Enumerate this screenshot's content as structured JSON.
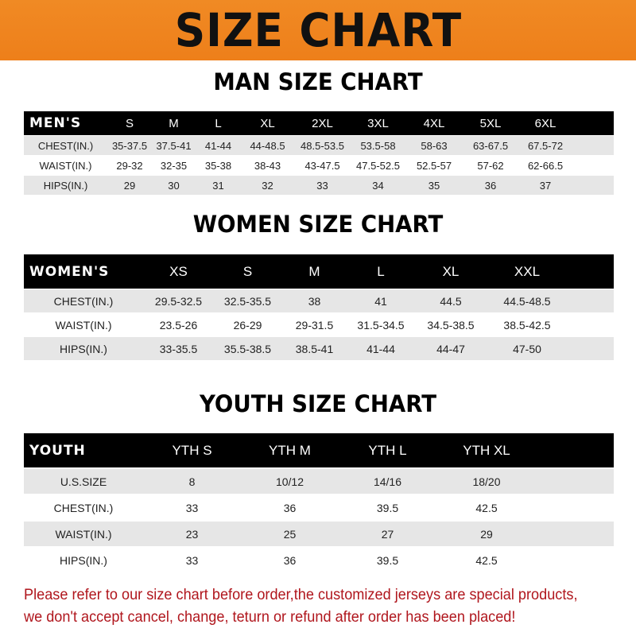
{
  "title": "SIZE CHART",
  "men": {
    "title": "MAN SIZE CHART",
    "header": [
      "MEN'S",
      "S",
      "M",
      "L",
      "XL",
      "2XL",
      "3XL",
      "4XL",
      "5XL",
      "6XL"
    ],
    "rows": [
      [
        "CHEST(IN.)",
        "35-37.5",
        "37.5-41",
        "41-44",
        "44-48.5",
        "48.5-53.5",
        "53.5-58",
        "58-63",
        "63-67.5",
        "67.5-72"
      ],
      [
        "WAIST(IN.)",
        "29-32",
        "32-35",
        "35-38",
        "38-43",
        "43-47.5",
        "47.5-52.5",
        "52.5-57",
        "57-62",
        "62-66.5"
      ],
      [
        "HIPS(IN.)",
        "29",
        "30",
        "31",
        "32",
        "33",
        "34",
        "35",
        "36",
        "37"
      ]
    ]
  },
  "women": {
    "title": "WOMEN SIZE CHART",
    "header": [
      "WOMEN'S",
      "XS",
      "S",
      "M",
      "L",
      "XL",
      "XXL"
    ],
    "rows": [
      [
        "CHEST(IN.)",
        "29.5-32.5",
        "32.5-35.5",
        "38",
        "41",
        "44.5",
        "44.5-48.5"
      ],
      [
        "WAIST(IN.)",
        "23.5-26",
        "26-29",
        "29-31.5",
        "31.5-34.5",
        "34.5-38.5",
        "38.5-42.5"
      ],
      [
        "HIPS(IN.)",
        "33-35.5",
        "35.5-38.5",
        "38.5-41",
        "41-44",
        "44-47",
        "47-50"
      ]
    ]
  },
  "youth": {
    "title": "YOUTH SIZE CHART",
    "header": [
      "YOUTH",
      "YTH S",
      "YTH M",
      "YTH L",
      "YTH XL"
    ],
    "rows": [
      [
        "U.S.SIZE",
        "8",
        "10/12",
        "14/16",
        "18/20"
      ],
      [
        "CHEST(IN.)",
        "33",
        "36",
        "39.5",
        "42.5"
      ],
      [
        "WAIST(IN.)",
        "23",
        "25",
        "27",
        "29"
      ],
      [
        "HIPS(IN.)",
        "33",
        "36",
        "39.5",
        "42.5"
      ]
    ]
  },
  "note": [
    "Please refer to our size chart before order,the customized jerseys are special products,",
    "we don't accept cancel, change, teturn or refund after order has been placed!"
  ],
  "colors": {
    "banner": "#ef841f",
    "header_row": "#000000",
    "stripe": "#e6e6e6",
    "note": "#b0161d"
  }
}
